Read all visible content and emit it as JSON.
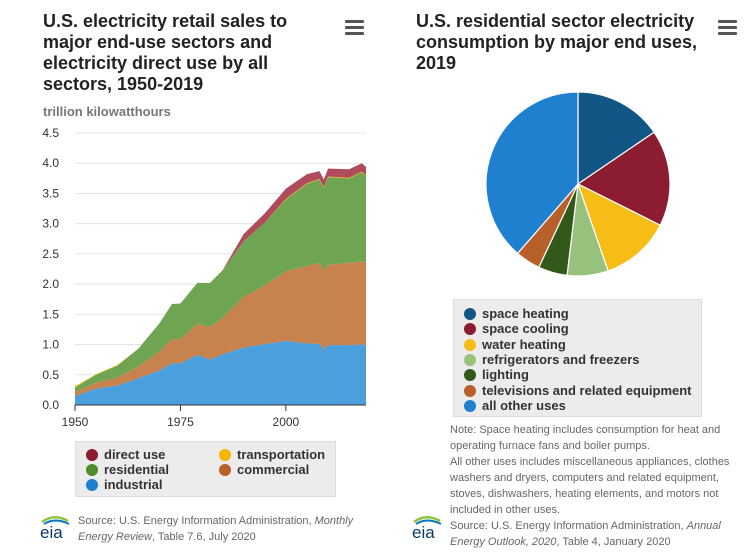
{
  "left": {
    "title": "U.S. electricity retail sales to major end-use sectors and electricity direct use by all sectors, 1950-2019",
    "unit_label": "trillion kilowatthours",
    "menu_icon": "hamburger-menu-icon",
    "source_prefix": "Source: U.S. Energy Information Administration, ",
    "source_italic": "Monthly Energy Review",
    "source_suffix": ", Table 7.6, July 2020",
    "legend": [
      {
        "label": "direct use",
        "color": "#8c1c30"
      },
      {
        "label": "transportation",
        "color": "#f5b800"
      },
      {
        "label": "residential",
        "color": "#4e8c2c"
      },
      {
        "label": "commercial",
        "color": "#b8602a"
      },
      {
        "label": "industrial",
        "color": "#1d80d0"
      }
    ]
  },
  "right": {
    "title": "U.S. residential sector electricity consumption by major end uses, 2019",
    "menu_icon": "hamburger-menu-icon",
    "note_line1": "Note: Space heating includes consumption for heat and operating furnace fans and boiler pumps.",
    "note_line2": "All other uses includes miscellaneous appliances, clothes washers and dryers, computers and related equipment, stoves, dishwashers, heating elements, and motors not included in other uses.",
    "source_prefix": "Source: U.S. Energy Information Administration, ",
    "source_italic": "Annual Energy Outlook, 2020",
    "source_suffix": ", Table 4, January 2020"
  },
  "logo_text": "eia",
  "chart_data": [
    {
      "type": "area",
      "stacked": true,
      "title": "U.S. electricity retail sales to major end-use sectors and electricity direct use by all sectors, 1950-2019",
      "ylabel": "trillion kilowatthours",
      "xlabel": "",
      "ylim": [
        0,
        4.5
      ],
      "xlim": [
        1950,
        2019
      ],
      "yticks": [
        "0.0",
        "0.5",
        "1.0",
        "1.5",
        "2.0",
        "2.5",
        "3.0",
        "3.5",
        "4.0",
        "4.5"
      ],
      "xticks": [
        "1950",
        "1975",
        "2000"
      ],
      "grid": true,
      "x": [
        1950,
        1955,
        1960,
        1965,
        1970,
        1973,
        1975,
        1979,
        1982,
        1985,
        1990,
        1995,
        2000,
        2005,
        2008,
        2009,
        2010,
        2015,
        2018,
        2019
      ],
      "series": [
        {
          "name": "industrial",
          "color": "#4a9fdc",
          "values": [
            0.15,
            0.27,
            0.32,
            0.44,
            0.57,
            0.69,
            0.69,
            0.83,
            0.75,
            0.84,
            0.95,
            1.01,
            1.06,
            1.02,
            1.01,
            0.92,
            0.99,
            0.99,
            1.0,
            0.99
          ]
        },
        {
          "name": "commercial",
          "color": "#c8824e",
          "values": [
            0.07,
            0.1,
            0.13,
            0.2,
            0.31,
            0.4,
            0.4,
            0.51,
            0.54,
            0.6,
            0.84,
            0.97,
            1.15,
            1.28,
            1.34,
            1.31,
            1.33,
            1.36,
            1.38,
            1.36
          ]
        },
        {
          "name": "residential",
          "color": "#6fa552",
          "values": [
            0.07,
            0.13,
            0.2,
            0.29,
            0.47,
            0.58,
            0.59,
            0.68,
            0.73,
            0.79,
            0.92,
            1.04,
            1.19,
            1.36,
            1.38,
            1.36,
            1.45,
            1.4,
            1.47,
            1.44
          ]
        },
        {
          "name": "transportation",
          "color": "#f5b800",
          "values": [
            0.02,
            0.01,
            0.01,
            0.0,
            0.0,
            0.0,
            0.0,
            0.0,
            0.0,
            0.0,
            0.0,
            0.0,
            0.01,
            0.01,
            0.01,
            0.01,
            0.01,
            0.01,
            0.01,
            0.01
          ]
        },
        {
          "name": "direct use",
          "color": "#b04b5c",
          "values": [
            0.0,
            0.0,
            0.0,
            0.0,
            0.0,
            0.0,
            0.0,
            0.0,
            0.0,
            0.0,
            0.12,
            0.15,
            0.17,
            0.15,
            0.13,
            0.13,
            0.13,
            0.14,
            0.14,
            0.14
          ]
        }
      ]
    },
    {
      "type": "pie",
      "title": "U.S. residential sector electricity consumption by major end uses, 2019",
      "unit": "percent",
      "categories": [
        "space heating",
        "space cooling",
        "water heating",
        "refrigerators and freezers",
        "lighting",
        "televisions and related equipment",
        "all other uses"
      ],
      "values": [
        15.5,
        16.9,
        12.3,
        7.2,
        5.1,
        4.4,
        38.6
      ],
      "colors": [
        "#125686",
        "#8c1c30",
        "#f6bd16",
        "#98c17d",
        "#33591a",
        "#b8602a",
        "#1f80d0"
      ]
    }
  ]
}
